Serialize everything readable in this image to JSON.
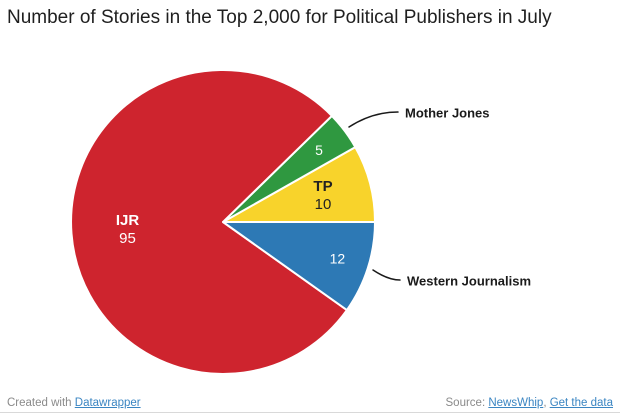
{
  "chart_data": {
    "type": "pie",
    "title": "Number of Stories in the Top 2,000 for Political Publishers in July",
    "slices": [
      {
        "name": "IJR",
        "value": 95,
        "color": "#ce242e",
        "inside_text_color": "#ffffff",
        "label_placement": "inside"
      },
      {
        "name": "Mother Jones",
        "value": 5,
        "color": "#2f9840",
        "inside_text_color": "#ffffff",
        "label_placement": "callout"
      },
      {
        "name": "TP",
        "value": 10,
        "color": "#f8d32b",
        "inside_text_color": "#222222",
        "label_placement": "inside"
      },
      {
        "name": "Western Journalism",
        "value": 12,
        "color": "#2d79b5",
        "inside_text_color": "#ffffff",
        "label_placement": "callout"
      }
    ],
    "legend_position": "none"
  },
  "footer": {
    "created_prefix": "Created with ",
    "datawrapper_link": "Datawrapper",
    "source_prefix": "Source: ",
    "source_link": "NewsWhip",
    "separator": ", ",
    "data_link": "Get the data",
    "link_color": "#3a85c2"
  }
}
